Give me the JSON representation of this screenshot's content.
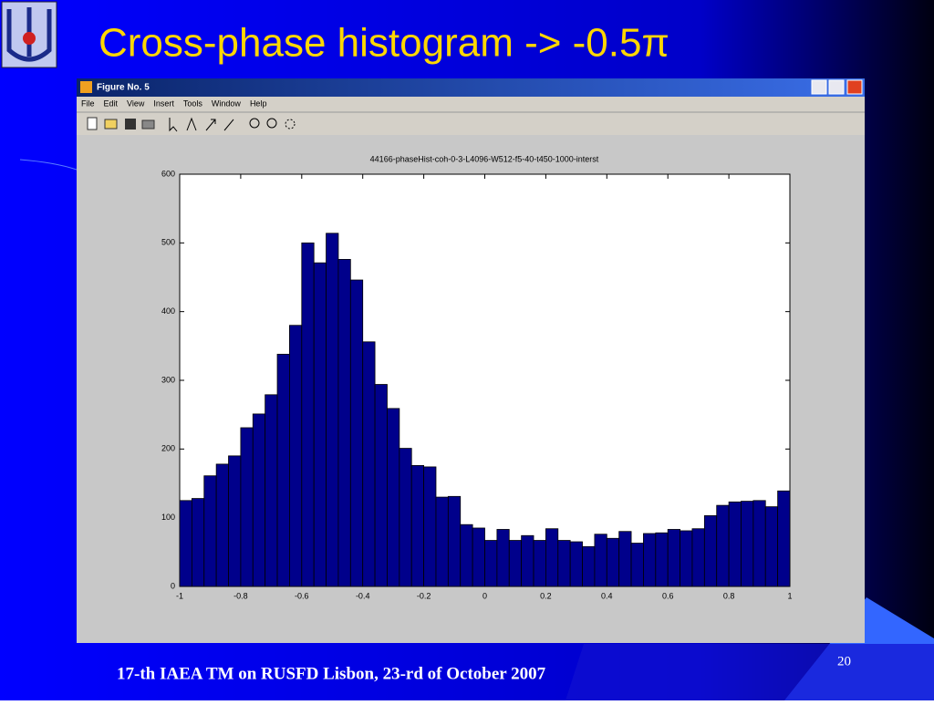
{
  "slide": {
    "title": "Cross-phase histogram  -> -0.5π",
    "footer": "17-th IAEA TM on RUSFD Lisbon, 23-rd of October 2007",
    "page_number": "20"
  },
  "window": {
    "title": "Figure No. 5",
    "menu": [
      "File",
      "Edit",
      "View",
      "Insert",
      "Tools",
      "Window",
      "Help"
    ]
  },
  "chart_data": {
    "type": "histogram",
    "title": "44166-phaseHist-coh-0-3-L4096-W512-f5-40-t450-1000-interst",
    "color": "#00008b",
    "bins": [
      -1,
      -0.96,
      -0.92,
      -0.88,
      -0.84,
      -0.8,
      -0.76,
      -0.72,
      -0.68,
      -0.64,
      -0.6,
      -0.56,
      -0.52,
      -0.48,
      -0.44,
      -0.4,
      -0.36,
      -0.32,
      -0.28,
      -0.24,
      -0.2,
      -0.16,
      -0.12,
      -0.08,
      -0.04,
      0,
      0.04,
      0.08,
      0.12,
      0.16,
      0.2,
      0.24,
      0.28,
      0.32,
      0.36,
      0.4,
      0.44,
      0.48,
      0.52,
      0.56,
      0.6,
      0.64,
      0.68,
      0.72,
      0.76,
      0.8,
      0.84,
      0.88,
      0.92,
      0.96,
      1
    ],
    "values": [
      125,
      128,
      161,
      178,
      190,
      231,
      251,
      279,
      338,
      380,
      500,
      471,
      514,
      476,
      446,
      356,
      294,
      259,
      201,
      176,
      174,
      130,
      131,
      90,
      85,
      67,
      83,
      67,
      74,
      67,
      84,
      67,
      65,
      58,
      76,
      70,
      80,
      63,
      77,
      78,
      83,
      81,
      84,
      103,
      118,
      123,
      124,
      125,
      116,
      139
    ],
    "xlim": [
      -1,
      1
    ],
    "xticks": [
      -1,
      -0.8,
      -0.6,
      -0.4,
      -0.2,
      0,
      0.2,
      0.4,
      0.6,
      0.8,
      1
    ],
    "ylim": [
      0,
      600
    ],
    "yticks": [
      0,
      100,
      200,
      300,
      400,
      500,
      600
    ]
  }
}
